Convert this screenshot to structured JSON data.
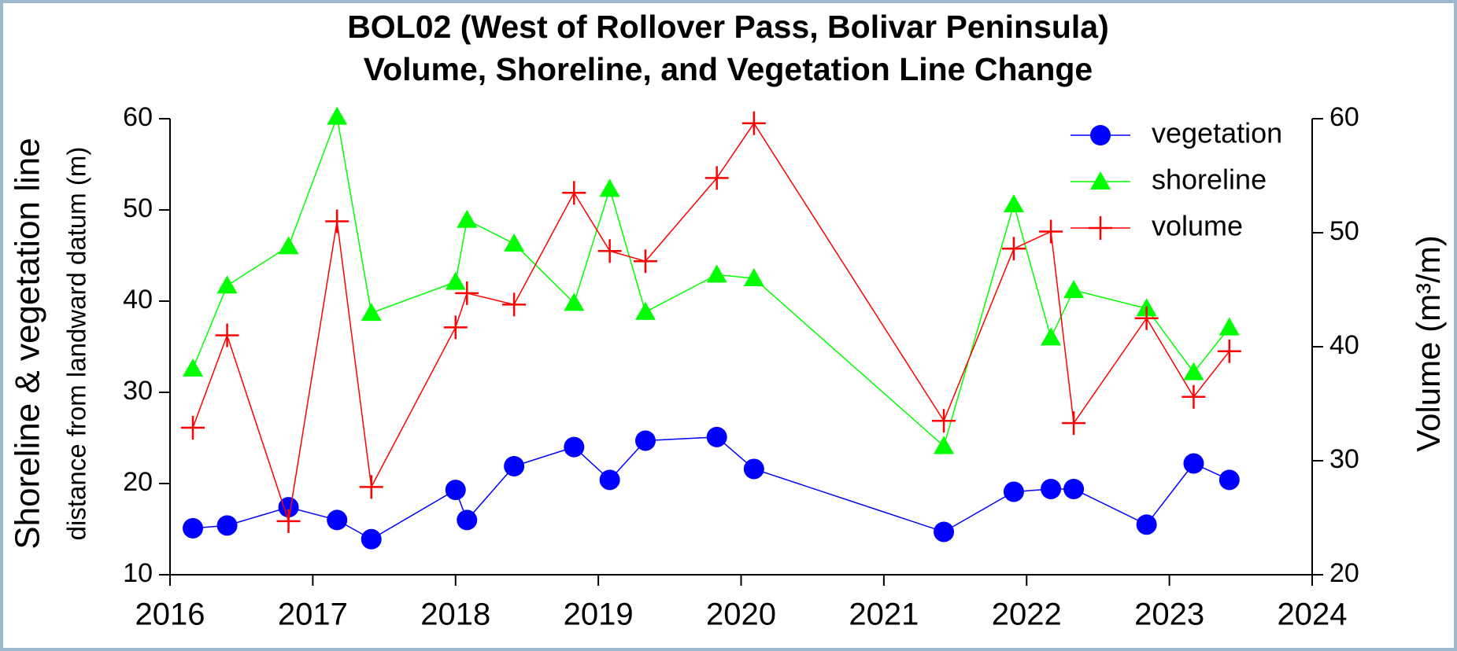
{
  "chart_data": {
    "type": "line",
    "title": "BOL02 (West of Rollover Pass, Bolivar Peninsula)",
    "subtitle": "Volume, Shoreline, and Vegetation Line Change",
    "ylabel": "Shoreline & vegetation line",
    "ylabel_sub": "distance from landward datum (m)",
    "y2label": "Volume (m³/m)",
    "x": [
      2016.16,
      2016.4,
      2016.83,
      2017.17,
      2017.41,
      2018.0,
      2018.08,
      2018.41,
      2018.83,
      2019.08,
      2019.33,
      2019.83,
      2020.09,
      2021.42,
      2021.91,
      2022.17,
      2022.33,
      2022.84,
      2023.17,
      2023.42
    ],
    "series": [
      {
        "name": "vegetation",
        "color": "#0000ff",
        "marker": "circle",
        "values": [
          15.1,
          15.4,
          17.4,
          16.0,
          13.9,
          19.3,
          16.0,
          21.9,
          24.0,
          20.4,
          24.7,
          25.1,
          21.6,
          14.7,
          19.1,
          19.4,
          19.4,
          15.5,
          22.2,
          20.4
        ]
      },
      {
        "name": "shoreline",
        "color": "#00ff00",
        "marker": "triangle",
        "values": [
          32.6,
          41.7,
          46.0,
          60.2,
          38.7,
          42.1,
          48.9,
          46.3,
          39.8,
          52.3,
          38.8,
          42.9,
          42.5,
          24.1,
          50.6,
          36.0,
          41.2,
          39.2,
          32.2,
          37.1
        ]
      },
      {
        "name": "volume",
        "color": "#ff0000",
        "marker": "plus",
        "axis": "y2",
        "values": [
          32.9,
          41.0,
          24.7,
          51.0,
          27.7,
          41.7,
          44.7,
          43.7,
          53.5,
          48.4,
          47.5,
          54.8,
          59.6,
          33.5,
          48.6,
          50.1,
          33.3,
          42.5,
          35.6,
          39.6
        ]
      }
    ],
    "xlim": [
      2016,
      2024
    ],
    "xticks": [
      2016,
      2017,
      2018,
      2019,
      2020,
      2021,
      2022,
      2023,
      2024
    ],
    "ylim": [
      10,
      60
    ],
    "yticks": [
      10,
      20,
      30,
      40,
      50,
      60
    ],
    "y2lim": [
      20,
      60
    ],
    "y2ticks": [
      20,
      30,
      40,
      50,
      60
    ],
    "legend": "upper right",
    "grid": false
  }
}
